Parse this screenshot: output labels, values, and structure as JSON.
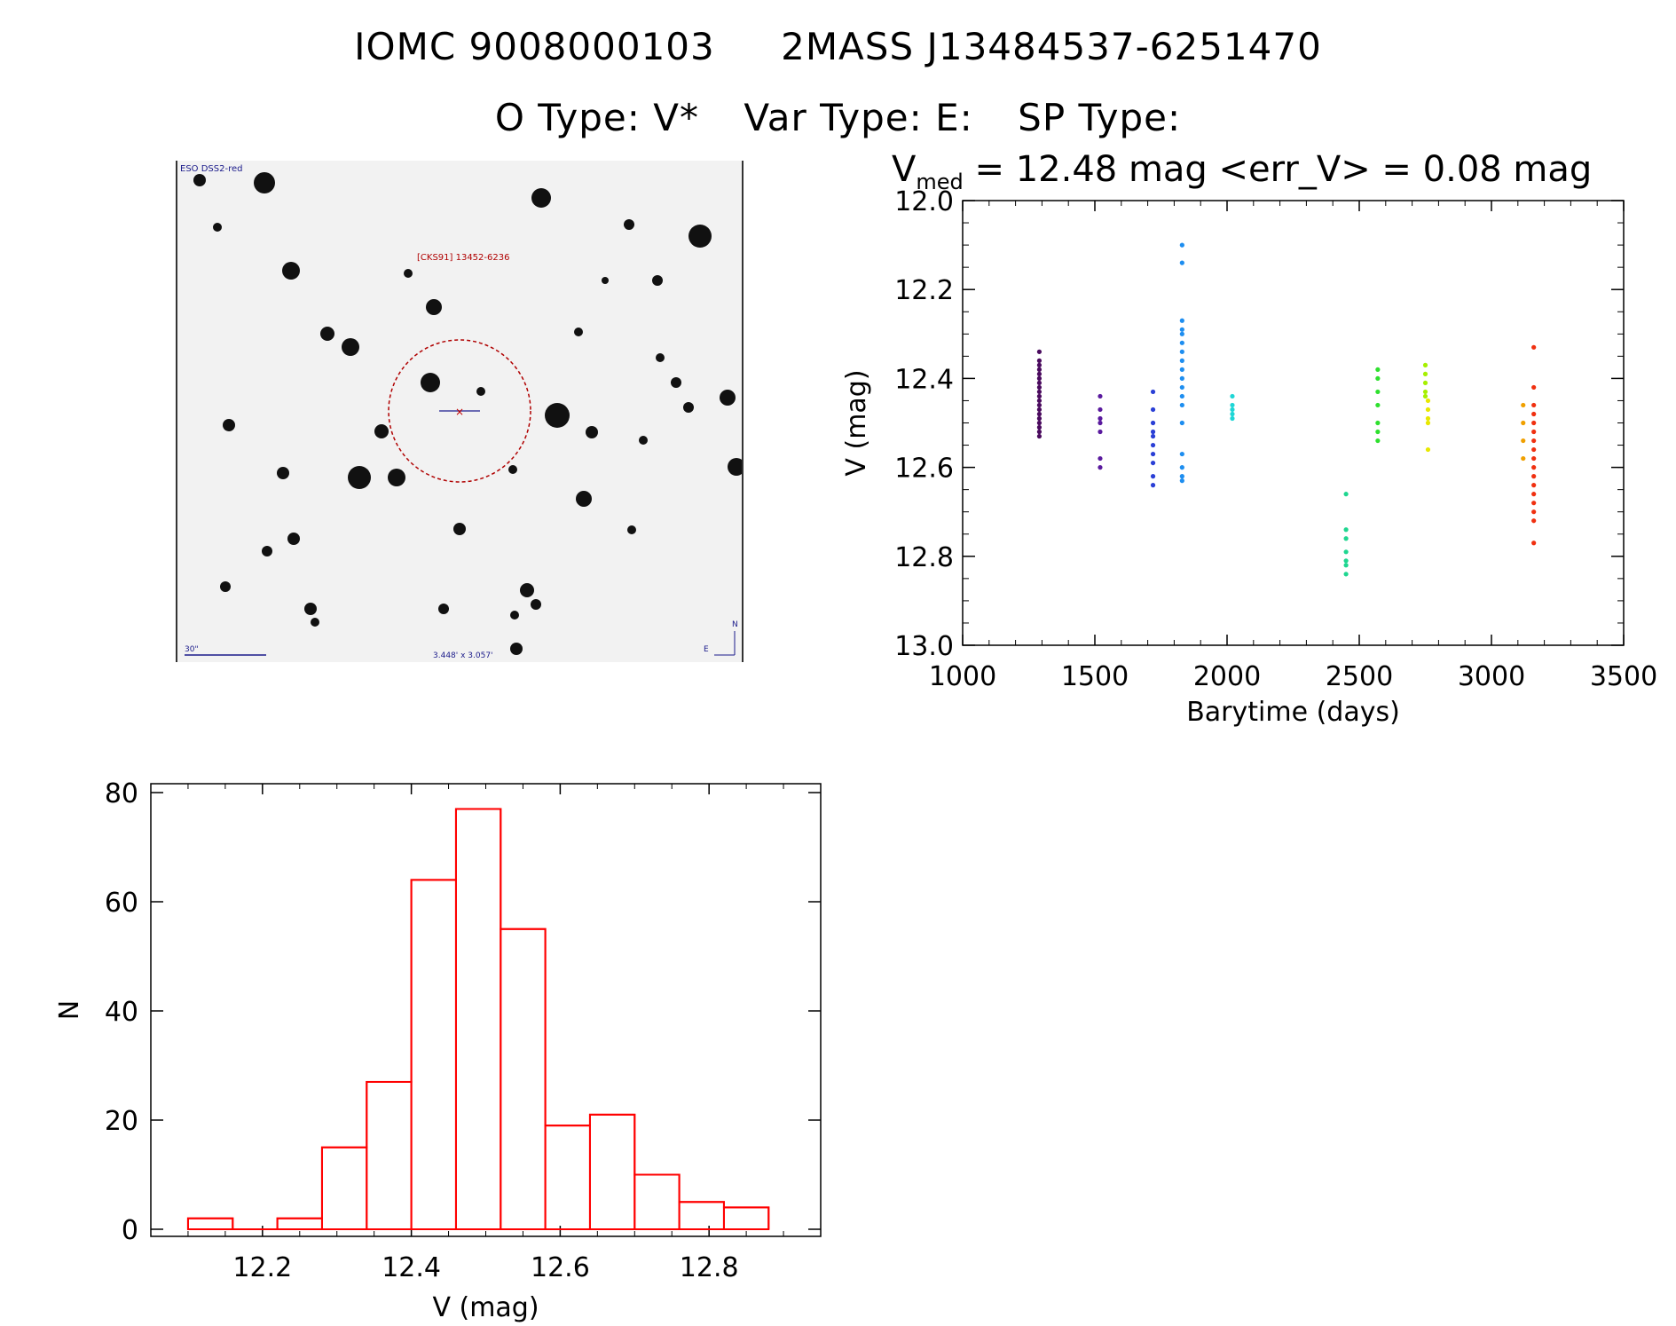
{
  "header": {
    "id_iomc": "IOMC 9008000103",
    "id_2mass": "2MASS J13484537-6251470",
    "o_type": "O Type: V*",
    "var_type": "Var Type: E:",
    "sp_type": "SP Type:"
  },
  "finder": {
    "survey_label": "ESO DSS2-red",
    "object_label": "[CKS91] 13452-6236",
    "scale_label": "30\"",
    "fov_label": "3.448' x 3.057'",
    "north_label": "N",
    "east_label": "E"
  },
  "lightcurve_header": {
    "v_symbol": "V",
    "v_sub": "med",
    "med_text": " = 12.48 mag <err_V> = 0.08 mag"
  },
  "chart_data": [
    {
      "type": "scatter",
      "xlabel": "Barytime (days)",
      "ylabel": "V (mag)",
      "xlim": [
        1000,
        3500
      ],
      "ylim": [
        13.0,
        12.0
      ],
      "y_inverted": true,
      "x_ticks": [
        "1000",
        "1500",
        "2000",
        "2500",
        "3000",
        "3500"
      ],
      "y_ticks": [
        "12.0",
        "12.2",
        "12.4",
        "12.6",
        "12.8",
        "13.0"
      ],
      "groups": [
        {
          "x": 1290,
          "color": "#4a0a5e",
          "values": [
            12.34,
            12.36,
            12.37,
            12.38,
            12.39,
            12.4,
            12.41,
            12.42,
            12.43,
            12.44,
            12.45,
            12.46,
            12.47,
            12.48,
            12.49,
            12.5,
            12.51,
            12.52,
            12.53
          ]
        },
        {
          "x": 1520,
          "color": "#5a1a9e",
          "values": [
            12.44,
            12.47,
            12.49,
            12.5,
            12.52,
            12.58,
            12.6
          ]
        },
        {
          "x": 1720,
          "color": "#2a3fd6",
          "values": [
            12.43,
            12.47,
            12.5,
            12.52,
            12.53,
            12.55,
            12.57,
            12.59,
            12.62,
            12.64
          ]
        },
        {
          "x": 1830,
          "color": "#1e8ef0",
          "values": [
            12.1,
            12.14,
            12.27,
            12.29,
            12.3,
            12.32,
            12.34,
            12.36,
            12.38,
            12.4,
            12.42,
            12.44,
            12.46,
            12.5,
            12.57,
            12.6,
            12.62,
            12.63
          ]
        },
        {
          "x": 2020,
          "color": "#1fd6d6",
          "values": [
            12.44,
            12.46,
            12.47,
            12.48,
            12.49
          ]
        },
        {
          "x": 2450,
          "color": "#1fd690",
          "values": [
            12.66,
            12.74,
            12.76,
            12.79,
            12.81,
            12.82,
            12.84
          ]
        },
        {
          "x": 2570,
          "color": "#2fe02f",
          "values": [
            12.38,
            12.4,
            12.43,
            12.46,
            12.5,
            12.52,
            12.54
          ]
        },
        {
          "x": 2750,
          "color": "#a6f000",
          "values": [
            12.37,
            12.39,
            12.41,
            12.43,
            12.44
          ]
        },
        {
          "x": 2760,
          "color": "#e8e800",
          "values": [
            12.45,
            12.47,
            12.49,
            12.5,
            12.56
          ]
        },
        {
          "x": 3120,
          "color": "#f0a000",
          "values": [
            12.46,
            12.5,
            12.54,
            12.58
          ]
        },
        {
          "x": 3160,
          "color": "#f03010",
          "values": [
            12.33,
            12.42,
            12.46,
            12.48,
            12.5,
            12.52,
            12.54,
            12.56,
            12.58,
            12.6,
            12.62,
            12.64,
            12.66,
            12.68,
            12.7,
            12.72,
            12.77
          ]
        }
      ]
    },
    {
      "type": "bar",
      "xlabel": "V (mag)",
      "ylabel": "N",
      "xlim": [
        12.05,
        12.95
      ],
      "ylim": [
        0,
        80
      ],
      "x_ticks": [
        "12.2",
        "12.4",
        "12.6",
        "12.8"
      ],
      "y_ticks": [
        "0",
        "20",
        "40",
        "60",
        "80"
      ],
      "bin_edges": [
        12.1,
        12.16,
        12.22,
        12.28,
        12.34,
        12.4,
        12.46,
        12.52,
        12.58,
        12.64,
        12.7,
        12.76,
        12.82,
        12.88
      ],
      "bin_width": 0.06,
      "bin_starts": [
        12.1,
        12.16,
        12.22,
        12.28,
        12.34,
        12.4,
        12.46,
        12.52,
        12.58,
        12.64,
        12.7,
        12.76,
        12.82
      ],
      "values": [
        2,
        0,
        2,
        15,
        27,
        64,
        77,
        55,
        19,
        21,
        10,
        5,
        4
      ],
      "color": "#ff0000"
    }
  ]
}
